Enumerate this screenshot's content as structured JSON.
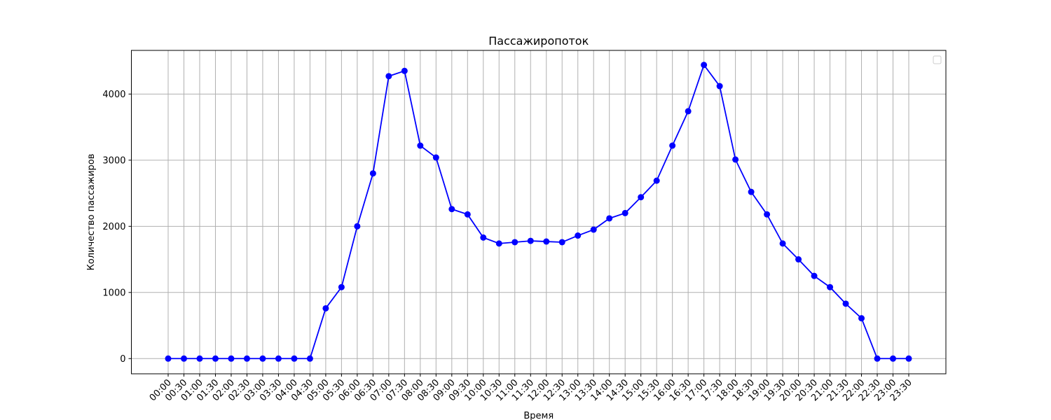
{
  "chart_data": {
    "type": "line",
    "title": "Пассажиропоток",
    "xlabel": "Время",
    "ylabel": "Количество пассажиров",
    "x": [
      "00:00",
      "00:30",
      "01:00",
      "01:30",
      "02:00",
      "02:30",
      "03:00",
      "03:30",
      "04:00",
      "04:30",
      "05:00",
      "05:30",
      "06:00",
      "06:30",
      "07:00",
      "07:30",
      "08:00",
      "08:30",
      "09:00",
      "09:30",
      "10:00",
      "10:30",
      "11:00",
      "11:30",
      "12:00",
      "12:30",
      "13:00",
      "13:30",
      "14:00",
      "14:30",
      "15:00",
      "15:30",
      "16:00",
      "16:30",
      "17:00",
      "17:30",
      "18:00",
      "18:30",
      "19:00",
      "19:30",
      "20:00",
      "20:30",
      "21:00",
      "21:30",
      "22:00",
      "22:30",
      "23:00",
      "23:30"
    ],
    "series": [
      {
        "values": [
          0,
          0,
          0,
          0,
          0,
          0,
          0,
          0,
          0,
          0,
          760,
          1080,
          2000,
          2800,
          4270,
          4350,
          3220,
          3040,
          2260,
          2180,
          1830,
          1740,
          1760,
          1780,
          1770,
          1760,
          1860,
          1950,
          2120,
          2200,
          2440,
          2690,
          3220,
          3740,
          4440,
          4120,
          3010,
          2520,
          2180,
          1740,
          1500,
          1250,
          1080,
          830,
          610,
          0,
          0,
          0
        ],
        "color": "#0000ff",
        "marker": "circle"
      }
    ],
    "yticks": [
      0,
      1000,
      2000,
      3000,
      4000
    ],
    "ylim": [
      -230,
      4660
    ],
    "grid": true,
    "legend": "top-right",
    "colors": {
      "line": "#0000ff",
      "grid": "#b0b0b0",
      "axes": "#000000"
    }
  }
}
